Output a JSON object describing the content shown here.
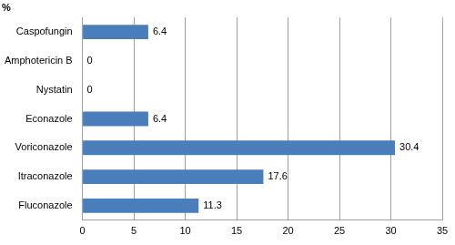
{
  "chart_data": {
    "type": "bar",
    "orientation": "horizontal",
    "title": "%",
    "categories": [
      "Caspofungin",
      "Amphotericin B",
      "Nystatin",
      "Econazole",
      "Voriconazole",
      "Itraconazole",
      "Fluconazole"
    ],
    "values": [
      6.4,
      0,
      0,
      6.4,
      30.4,
      17.6,
      11.3
    ],
    "color": "#4a7ebb",
    "xlim": [
      0,
      35
    ],
    "xticks": [
      0,
      5,
      10,
      15,
      20,
      25,
      30,
      35
    ],
    "grid": true,
    "data_labels": true
  }
}
